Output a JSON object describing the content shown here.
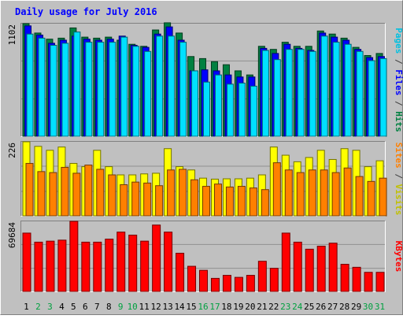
{
  "chart_data": {
    "type": "bar",
    "title": "Daily usage for July 2016",
    "days": [
      "1",
      "2",
      "3",
      "4",
      "5",
      "6",
      "7",
      "8",
      "9",
      "10",
      "11",
      "12",
      "13",
      "14",
      "15",
      "16",
      "17",
      "18",
      "19",
      "20",
      "21",
      "22",
      "23",
      "24",
      "25",
      "26",
      "27",
      "28",
      "29",
      "30",
      "31"
    ],
    "weekend_days": [
      2,
      3,
      9,
      10,
      16,
      17,
      23,
      24,
      30,
      31
    ],
    "panels": [
      {
        "id": "hits",
        "max_label": "1102",
        "ymax": 1102,
        "series": [
          {
            "name": "Hits",
            "color": "#008040",
            "values": [
              1102,
              1010,
              950,
              960,
              1060,
              970,
              960,
              970,
              940,
              900,
              880,
              1040,
              1110,
              1010,
              780,
              760,
              730,
              700,
              640,
              600,
              880,
              850,
              920,
              880,
              880,
              1030,
              1000,
              960,
              870,
              790,
              810
            ]
          },
          {
            "name": "Files",
            "color": "#0000ff",
            "values": [
              1080,
              990,
              910,
              940,
              980,
              950,
              940,
              950,
              980,
              890,
              870,
              1000,
              1070,
              940,
              640,
              650,
              640,
              600,
              580,
              580,
              860,
              810,
              900,
              860,
              840,
              1010,
              970,
              940,
              850,
              770,
              780
            ]
          },
          {
            "name": "Pages",
            "color": "#00e0ff",
            "values": [
              1000,
              960,
              890,
              910,
              1020,
              920,
              920,
              920,
              970,
              880,
              830,
              980,
              980,
              920,
              640,
              530,
              600,
              510,
              520,
              490,
              840,
              750,
              850,
              850,
              830,
              980,
              920,
              900,
              830,
              740,
              760
            ]
          }
        ],
        "label_parts": [
          {
            "text": "Pages",
            "color": "#00c0e0"
          },
          {
            "text": " / ",
            "color": "#404040"
          },
          {
            "text": "Files",
            "color": "#0000ff"
          },
          {
            "text": " / ",
            "color": "#404040"
          },
          {
            "text": "Hits",
            "color": "#008040"
          }
        ]
      },
      {
        "id": "visits",
        "max_label": "226",
        "ymax": 226,
        "series": [
          {
            "name": "Visits",
            "color": "#ffff00",
            "values": [
              226,
              212,
              200,
              210,
              160,
              150,
              200,
              150,
              125,
              125,
              128,
              130,
              205,
              150,
              140,
              115,
              112,
              113,
              113,
              115,
              125,
              210,
              185,
              165,
              178,
              200,
              172,
              205,
              200,
              150,
              168
            ]
          },
          {
            "name": "Sites",
            "color": "#ff8000",
            "values": [
              160,
              135,
              132,
              148,
              130,
              155,
              142,
              125,
              95,
              103,
              100,
              92,
              140,
              142,
              110,
              90,
              97,
              88,
              90,
              85,
              80,
              162,
              140,
              132,
              140,
              140,
              132,
              146,
              120,
              105,
              115
            ]
          }
        ],
        "label_parts": [
          {
            "text": "Sites",
            "color": "#ff8000"
          },
          {
            "text": " / ",
            "color": "#404040"
          },
          {
            "text": "Visits",
            "color": "#c0c000"
          }
        ]
      },
      {
        "id": "kbytes",
        "max_label": "69684",
        "ymax": 69684,
        "series": [
          {
            "name": "KBytes",
            "color": "#ff0000",
            "values": [
              58000,
              49000,
              50000,
              51000,
              69684,
              49000,
              49000,
              52000,
              59000,
              56000,
              50000,
              66000,
              59000,
              38000,
              25000,
              21000,
              13000,
              16000,
              14000,
              16000,
              30000,
              23000,
              58000,
              49000,
              42000,
              45000,
              48000,
              27000,
              24000,
              19000,
              19000
            ]
          }
        ],
        "label_parts": [
          {
            "text": "KBytes",
            "color": "#ff0000"
          }
        ]
      }
    ]
  }
}
